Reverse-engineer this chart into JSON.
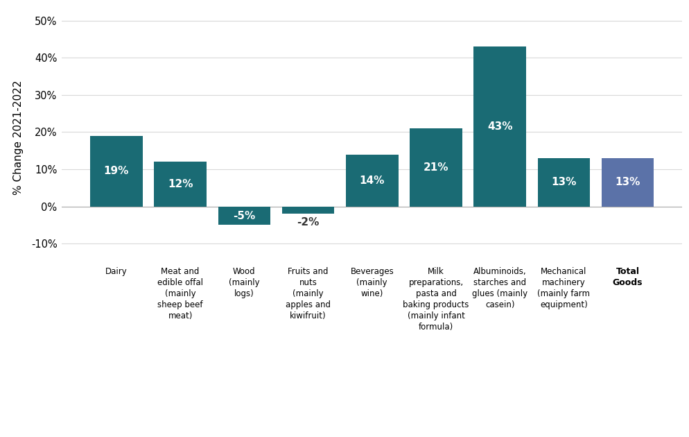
{
  "categories": [
    "Dairy",
    "Meat and\nedible offal\n(mainly\nsheep beef\nmeat)",
    "Wood\n(mainly\nlogs)",
    "Fruits and\nnuts\n(mainly\napples and\nkiwifruit)",
    "Beverages\n(mainly\nwine)",
    "Milk\npreparations,\npasta and\nbaking products\n(mainly infant\nformula)",
    "Albuminoids,\nstarches and\nglues (mainly\ncasein)",
    "Mechanical\nmachinery\n(mainly farm\nequipment)",
    "Total\nGoods"
  ],
  "values": [
    19,
    12,
    -5,
    -2,
    14,
    21,
    43,
    13,
    13
  ],
  "bar_colors": [
    "#1a6b74",
    "#1a6b74",
    "#1a6b74",
    "#1a6b74",
    "#1a6b74",
    "#1a6b74",
    "#1a6b74",
    "#1a6b74",
    "#5b72a8"
  ],
  "label_inside_color": "#ffffff",
  "label_outside_color": "#333333",
  "ylabel": "% Change 2021-2022",
  "ylim": [
    -15,
    52
  ],
  "yticks": [
    -10,
    0,
    10,
    20,
    30,
    40,
    50
  ],
  "ytick_labels": [
    "-10%",
    "0%",
    "10%",
    "20%",
    "30%",
    "40%",
    "50%"
  ],
  "background_color": "#ffffff",
  "grid_color": "#d9d9d9",
  "bar_label_fontsize": 11,
  "ylabel_fontsize": 11,
  "xlabel_fontsize": 8.5,
  "bar_width": 0.82,
  "total_goods_bold": true
}
